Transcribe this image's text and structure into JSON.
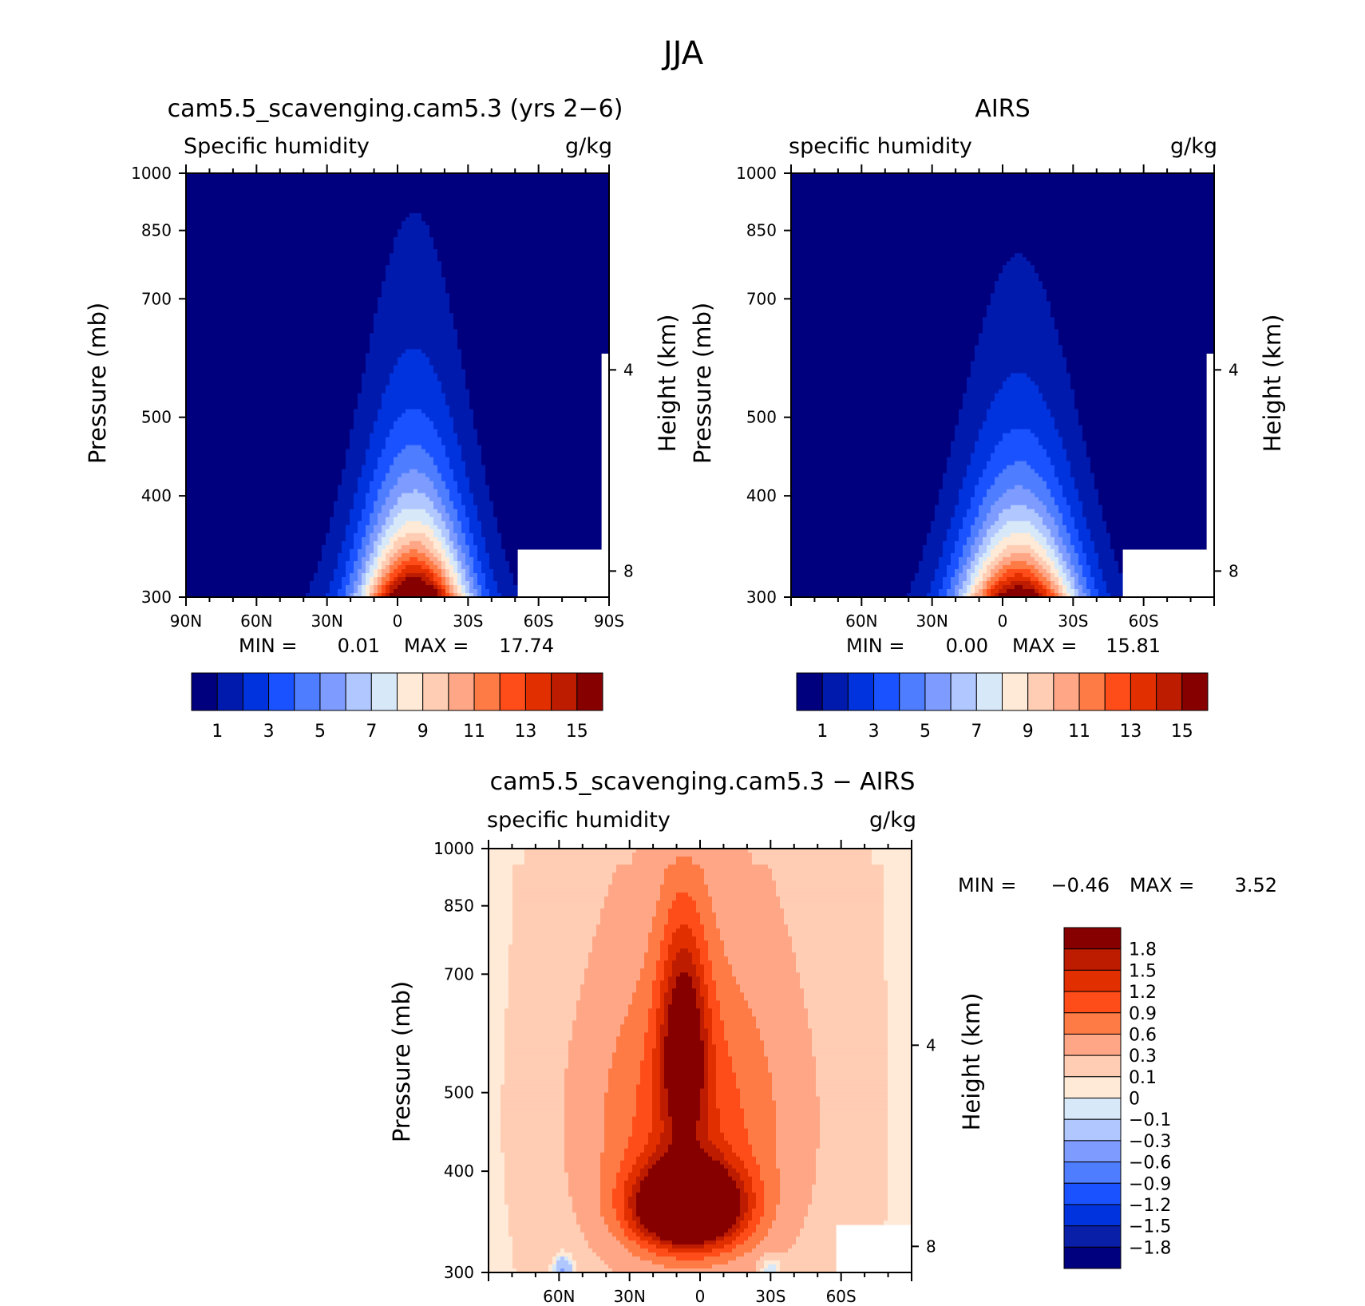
{
  "figure": {
    "title": "JJA"
  },
  "colors": {
    "abs_scale": [
      "#00007f",
      "#001aae",
      "#0033dd",
      "#1a52ff",
      "#4f7dff",
      "#7e9cff",
      "#b1c7ff",
      "#d7e9f9",
      "#ffead7",
      "#ffcdb3",
      "#ffa686",
      "#ff7b46",
      "#ff4d1a",
      "#e22f00",
      "#bd1c00",
      "#870000"
    ],
    "diff_scale": [
      "#00007f",
      "#0a1fa8",
      "#0033dd",
      "#1a52ff",
      "#4f7dff",
      "#7e9cff",
      "#b1c7ff",
      "#d7e9f9",
      "#ffead7",
      "#ffcdb3",
      "#ffa686",
      "#ff7b46",
      "#ff4d1a",
      "#e22f00",
      "#bd1c00",
      "#870000"
    ]
  },
  "chart_data": [
    {
      "type": "heatmap",
      "id": "model",
      "title": "cam5.5_scavenging.cam5.3 (yrs 2−6)",
      "left_label": "Specific humidity",
      "right_label": "g/kg",
      "ylabel": "Pressure (mb)",
      "ylabel_right": "Height (km)",
      "ylim": [
        1000,
        300
      ],
      "yticks": [
        "300",
        "400",
        "500",
        "700",
        "850",
        "1000"
      ],
      "height_ticks": [
        "8",
        "4"
      ],
      "xticks": [
        "90N",
        "60N",
        "30N",
        "0",
        "30S",
        "60S",
        "90S"
      ],
      "min_label": "MIN =",
      "min_value": "0.01",
      "max_label": "MAX =",
      "max_value": "17.74",
      "min": 0.01,
      "max": 17.74,
      "peak_lat": -7,
      "colorbar_labels": [
        "1",
        "3",
        "5",
        "7",
        "9",
        "11",
        "13",
        "15"
      ],
      "contour_levels": [
        1,
        2,
        3,
        4,
        5,
        6,
        7,
        8,
        9,
        10,
        11,
        12,
        13,
        14,
        15
      ]
    },
    {
      "type": "heatmap",
      "id": "obs",
      "title": "AIRS",
      "left_label": "specific humidity",
      "right_label": "g/kg",
      "ylabel": "Pressure (mb)",
      "ylabel_right": "Height (km)",
      "ylim": [
        1000,
        300
      ],
      "yticks": [
        "300",
        "400",
        "500",
        "700",
        "850",
        "1000"
      ],
      "height_ticks": [
        "8",
        "4"
      ],
      "xticks": [
        "60N",
        "30N",
        "0",
        "30S",
        "60S"
      ],
      "min_label": "MIN =",
      "min_value": "0.00",
      "max_label": "MAX =",
      "max_value": "15.81",
      "min": 0.0,
      "max": 15.81,
      "peak_lat": -7,
      "colorbar_labels": [
        "1",
        "3",
        "5",
        "7",
        "9",
        "11",
        "13",
        "15"
      ],
      "contour_levels": [
        1,
        2,
        3,
        4,
        5,
        6,
        7,
        8,
        9,
        10,
        11,
        12,
        13,
        14,
        15
      ]
    },
    {
      "type": "heatmap",
      "id": "diff",
      "title": "cam5.5_scavenging.cam5.3 − AIRS",
      "left_label": "specific humidity",
      "right_label": "g/kg",
      "ylabel": "Pressure (mb)",
      "ylabel_right": "Height (km)",
      "ylim": [
        1000,
        300
      ],
      "yticks": [
        "300",
        "400",
        "500",
        "700",
        "850",
        "1000"
      ],
      "height_ticks": [
        "8",
        "4"
      ],
      "xticks": [
        "60N",
        "30N",
        "0",
        "30S",
        "60S"
      ],
      "min_label": "MIN =",
      "min_value": "−0.46",
      "max_label": "MAX =",
      "max_value": "3.52",
      "min": -0.46,
      "max": 3.52,
      "colorbar_labels": [
        "1.8",
        "1.5",
        "1.2",
        "0.9",
        "0.6",
        "0.3",
        "0.1",
        "0",
        "−0.1",
        "−0.3",
        "−0.6",
        "−0.9",
        "−1.2",
        "−1.5",
        "−1.8"
      ],
      "contour_levels": [
        -1.8,
        -1.5,
        -1.2,
        -0.9,
        -0.6,
        -0.3,
        -0.1,
        0,
        0.1,
        0.3,
        0.6,
        0.9,
        1.2,
        1.5,
        1.8
      ]
    }
  ]
}
